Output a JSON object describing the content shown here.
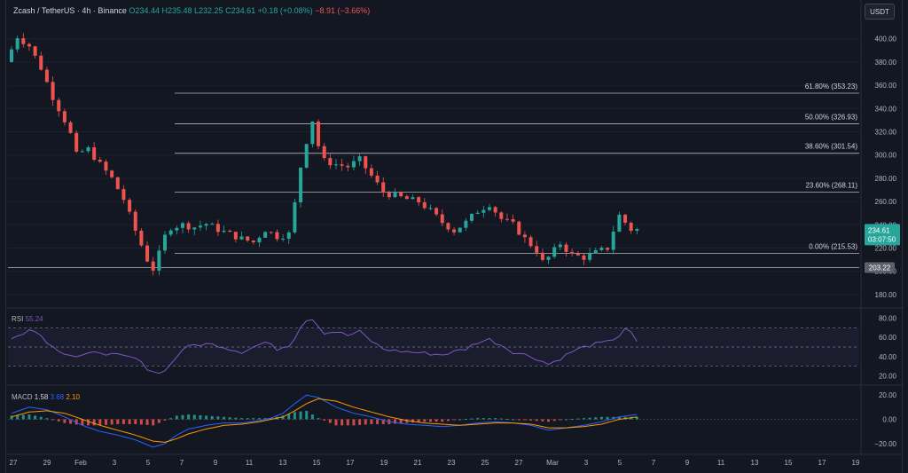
{
  "header": {
    "symbol": "Zcash / TetherUS · 4h · Binance",
    "open": "O234.44",
    "high": "H235.48",
    "low": "L232.25",
    "close": "C234.61",
    "change": "+0.18 (+0.08%)",
    "change2": "−8.91 (−3.66%)"
  },
  "currency_button": "USDT",
  "price_axis": {
    "ticks": [
      "400.00",
      "380.00",
      "360.00",
      "340.00",
      "320.00",
      "300.00",
      "280.00",
      "260.00",
      "240.00",
      "220.00",
      "200.00",
      "180.00"
    ],
    "tick_values": [
      400,
      380,
      360,
      340,
      320,
      300,
      280,
      260,
      240,
      220,
      200,
      180
    ],
    "last_price": "234.61",
    "countdown": "03:07:50",
    "support_label": "203.22",
    "support_value": 203.22
  },
  "fib_levels": [
    {
      "label": "61.80% (353.23)",
      "value": 353.23
    },
    {
      "label": "50.00% (326.93)",
      "value": 326.93
    },
    {
      "label": "38.60% (301.54)",
      "value": 301.54
    },
    {
      "label": "23.60% (268.11)",
      "value": 268.11
    },
    {
      "label": "0.00% (215.53)",
      "value": 215.53
    }
  ],
  "rsi": {
    "title": "RSI",
    "value": "55.24",
    "ticks": [
      "80.00",
      "60.00",
      "40.00",
      "20.00"
    ],
    "tick_values": [
      80,
      60,
      40,
      20
    ]
  },
  "macd": {
    "title": "MACD",
    "v1": "1.58",
    "v2": "3.68",
    "v3": "2.10",
    "ticks": [
      "20.00",
      "0.00",
      "−20.00"
    ],
    "tick_values": [
      20,
      0,
      -20
    ]
  },
  "time_axis": {
    "labels": [
      "27",
      "29",
      "Feb",
      "3",
      "5",
      "7",
      "9",
      "11",
      "13",
      "15",
      "17",
      "19",
      "21",
      "23",
      "25",
      "27",
      "Mar",
      "3",
      "5",
      "7",
      "9",
      "11",
      "13",
      "15",
      "17",
      "19"
    ]
  },
  "colors": {
    "up": "#26a69a",
    "down": "#ef5350",
    "rsi_line": "#7e57c2",
    "macd_line": "#2962ff",
    "signal_line": "#ff9800"
  },
  "chart_data": {
    "type": "candlestick",
    "price_path": [
      [
        0,
        380
      ],
      [
        2,
        402
      ],
      [
        4,
        394
      ],
      [
        6,
        375
      ],
      [
        8,
        350
      ],
      [
        10,
        330
      ],
      [
        11,
        318
      ],
      [
        12,
        300
      ],
      [
        13,
        303
      ],
      [
        14,
        305
      ],
      [
        16,
        292
      ],
      [
        18,
        280
      ],
      [
        20,
        262
      ],
      [
        22,
        235
      ],
      [
        24,
        210
      ],
      [
        25,
        202
      ],
      [
        26,
        215
      ],
      [
        27,
        230
      ],
      [
        28,
        238
      ],
      [
        30,
        240
      ],
      [
        32,
        238
      ],
      [
        34,
        241
      ],
      [
        36,
        236
      ],
      [
        38,
        232
      ],
      [
        40,
        228
      ],
      [
        42,
        225
      ],
      [
        44,
        236
      ],
      [
        46,
        230
      ],
      [
        48,
        232
      ],
      [
        49,
        258
      ],
      [
        50,
        290
      ],
      [
        51,
        312
      ],
      [
        52,
        330
      ],
      [
        53,
        308
      ],
      [
        54,
        295
      ],
      [
        56,
        292
      ],
      [
        58,
        290
      ],
      [
        60,
        296
      ],
      [
        62,
        282
      ],
      [
        64,
        268
      ],
      [
        66,
        265
      ],
      [
        68,
        262
      ],
      [
        70,
        260
      ],
      [
        72,
        252
      ],
      [
        74,
        242
      ],
      [
        76,
        235
      ],
      [
        78,
        242
      ],
      [
        80,
        252
      ],
      [
        82,
        258
      ],
      [
        84,
        245
      ],
      [
        86,
        240
      ],
      [
        88,
        228
      ],
      [
        90,
        218
      ],
      [
        91,
        208
      ],
      [
        92,
        212
      ],
      [
        94,
        224
      ],
      [
        96,
        214
      ],
      [
        98,
        212
      ],
      [
        100,
        216
      ],
      [
        102,
        220
      ],
      [
        103,
        235
      ],
      [
        104,
        248
      ],
      [
        105,
        242
      ],
      [
        106,
        236
      ]
    ],
    "rsi_path": [
      [
        0,
        58
      ],
      [
        2,
        65
      ],
      [
        3,
        70
      ],
      [
        5,
        62
      ],
      [
        7,
        50
      ],
      [
        9,
        44
      ],
      [
        11,
        40
      ],
      [
        13,
        42
      ],
      [
        15,
        45
      ],
      [
        17,
        42
      ],
      [
        19,
        40
      ],
      [
        21,
        38
      ],
      [
        23,
        28
      ],
      [
        25,
        22
      ],
      [
        27,
        32
      ],
      [
        29,
        48
      ],
      [
        31,
        52
      ],
      [
        33,
        53
      ],
      [
        35,
        52
      ],
      [
        37,
        48
      ],
      [
        39,
        45
      ],
      [
        41,
        50
      ],
      [
        43,
        55
      ],
      [
        45,
        48
      ],
      [
        47,
        52
      ],
      [
        48,
        60
      ],
      [
        49,
        72
      ],
      [
        50,
        78
      ],
      [
        51,
        80
      ],
      [
        52,
        72
      ],
      [
        53,
        65
      ],
      [
        55,
        66
      ],
      [
        57,
        62
      ],
      [
        59,
        66
      ],
      [
        61,
        56
      ],
      [
        63,
        48
      ],
      [
        65,
        46
      ],
      [
        67,
        45
      ],
      [
        69,
        44
      ],
      [
        71,
        43
      ],
      [
        73,
        42
      ],
      [
        75,
        45
      ],
      [
        77,
        48
      ],
      [
        79,
        55
      ],
      [
        81,
        58
      ],
      [
        83,
        52
      ],
      [
        85,
        45
      ],
      [
        87,
        42
      ],
      [
        89,
        38
      ],
      [
        91,
        32
      ],
      [
        93,
        38
      ],
      [
        95,
        45
      ],
      [
        97,
        50
      ],
      [
        99,
        53
      ],
      [
        101,
        55
      ],
      [
        103,
        62
      ],
      [
        104,
        70
      ],
      [
        105,
        64
      ],
      [
        106,
        55
      ]
    ],
    "macd_path": [
      [
        0,
        5
      ],
      [
        3,
        10
      ],
      [
        6,
        8
      ],
      [
        9,
        2
      ],
      [
        12,
        -5
      ],
      [
        15,
        -10
      ],
      [
        18,
        -13
      ],
      [
        21,
        -17
      ],
      [
        24,
        -23
      ],
      [
        26,
        -20
      ],
      [
        28,
        -13
      ],
      [
        30,
        -8
      ],
      [
        33,
        -5
      ],
      [
        36,
        -3
      ],
      [
        39,
        -3
      ],
      [
        42,
        -1
      ],
      [
        44,
        1
      ],
      [
        46,
        5
      ],
      [
        48,
        13
      ],
      [
        50,
        20
      ],
      [
        52,
        18
      ],
      [
        55,
        10
      ],
      [
        58,
        5
      ],
      [
        61,
        2
      ],
      [
        64,
        -2
      ],
      [
        67,
        -4
      ],
      [
        70,
        -5
      ],
      [
        73,
        -6
      ],
      [
        76,
        -5
      ],
      [
        79,
        -3
      ],
      [
        82,
        -2
      ],
      [
        85,
        -3
      ],
      [
        88,
        -5
      ],
      [
        91,
        -9
      ],
      [
        94,
        -7
      ],
      [
        97,
        -5
      ],
      [
        100,
        -2
      ],
      [
        103,
        2
      ],
      [
        106,
        4
      ]
    ],
    "signal_path": [
      [
        0,
        2
      ],
      [
        3,
        6
      ],
      [
        6,
        7
      ],
      [
        9,
        5
      ],
      [
        12,
        0
      ],
      [
        15,
        -5
      ],
      [
        18,
        -9
      ],
      [
        21,
        -13
      ],
      [
        24,
        -18
      ],
      [
        26,
        -19
      ],
      [
        28,
        -16
      ],
      [
        30,
        -12
      ],
      [
        33,
        -8
      ],
      [
        36,
        -5
      ],
      [
        39,
        -4
      ],
      [
        42,
        -2
      ],
      [
        44,
        0
      ],
      [
        46,
        2
      ],
      [
        48,
        7
      ],
      [
        50,
        13
      ],
      [
        52,
        17
      ],
      [
        55,
        15
      ],
      [
        58,
        10
      ],
      [
        61,
        6
      ],
      [
        64,
        2
      ],
      [
        67,
        -1
      ],
      [
        70,
        -3
      ],
      [
        73,
        -4
      ],
      [
        76,
        -5
      ],
      [
        79,
        -4
      ],
      [
        82,
        -3
      ],
      [
        85,
        -3
      ],
      [
        88,
        -4
      ],
      [
        91,
        -7
      ],
      [
        94,
        -7
      ],
      [
        97,
        -6
      ],
      [
        100,
        -4
      ],
      [
        103,
        0
      ],
      [
        106,
        2
      ]
    ],
    "candle_count": 107,
    "ylim": [
      170,
      412
    ],
    "rsi_ylim": [
      12,
      88
    ],
    "macd_ylim": [
      -26,
      26
    ],
    "rsi_bands": [
      70,
      50,
      30
    ]
  }
}
